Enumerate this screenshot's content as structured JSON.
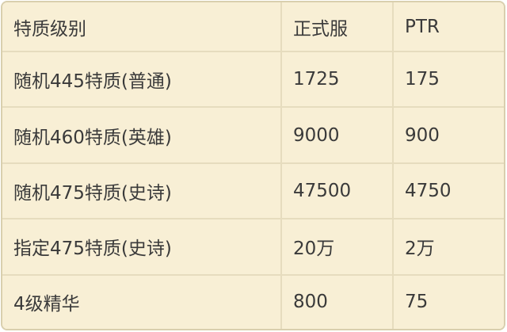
{
  "chart_data": {
    "type": "table",
    "columns": [
      "特质级别",
      "正式服",
      "PTR"
    ],
    "rows": [
      [
        "随机445特质(普通)",
        "1725",
        "175"
      ],
      [
        "随机460特质(英雄)",
        "9000",
        "900"
      ],
      [
        "随机475特质(史诗)",
        "47500",
        "4750"
      ],
      [
        "指定475特质(史诗)",
        "20万",
        "2万"
      ],
      [
        "4级精华",
        "800",
        "75"
      ]
    ]
  },
  "colors": {
    "page_background": "#ffffff",
    "cell_background": "#f8efd5",
    "grid_border": "#e6dcbe",
    "outer_border": "#d9cfae",
    "text": "#3a3a3a"
  }
}
